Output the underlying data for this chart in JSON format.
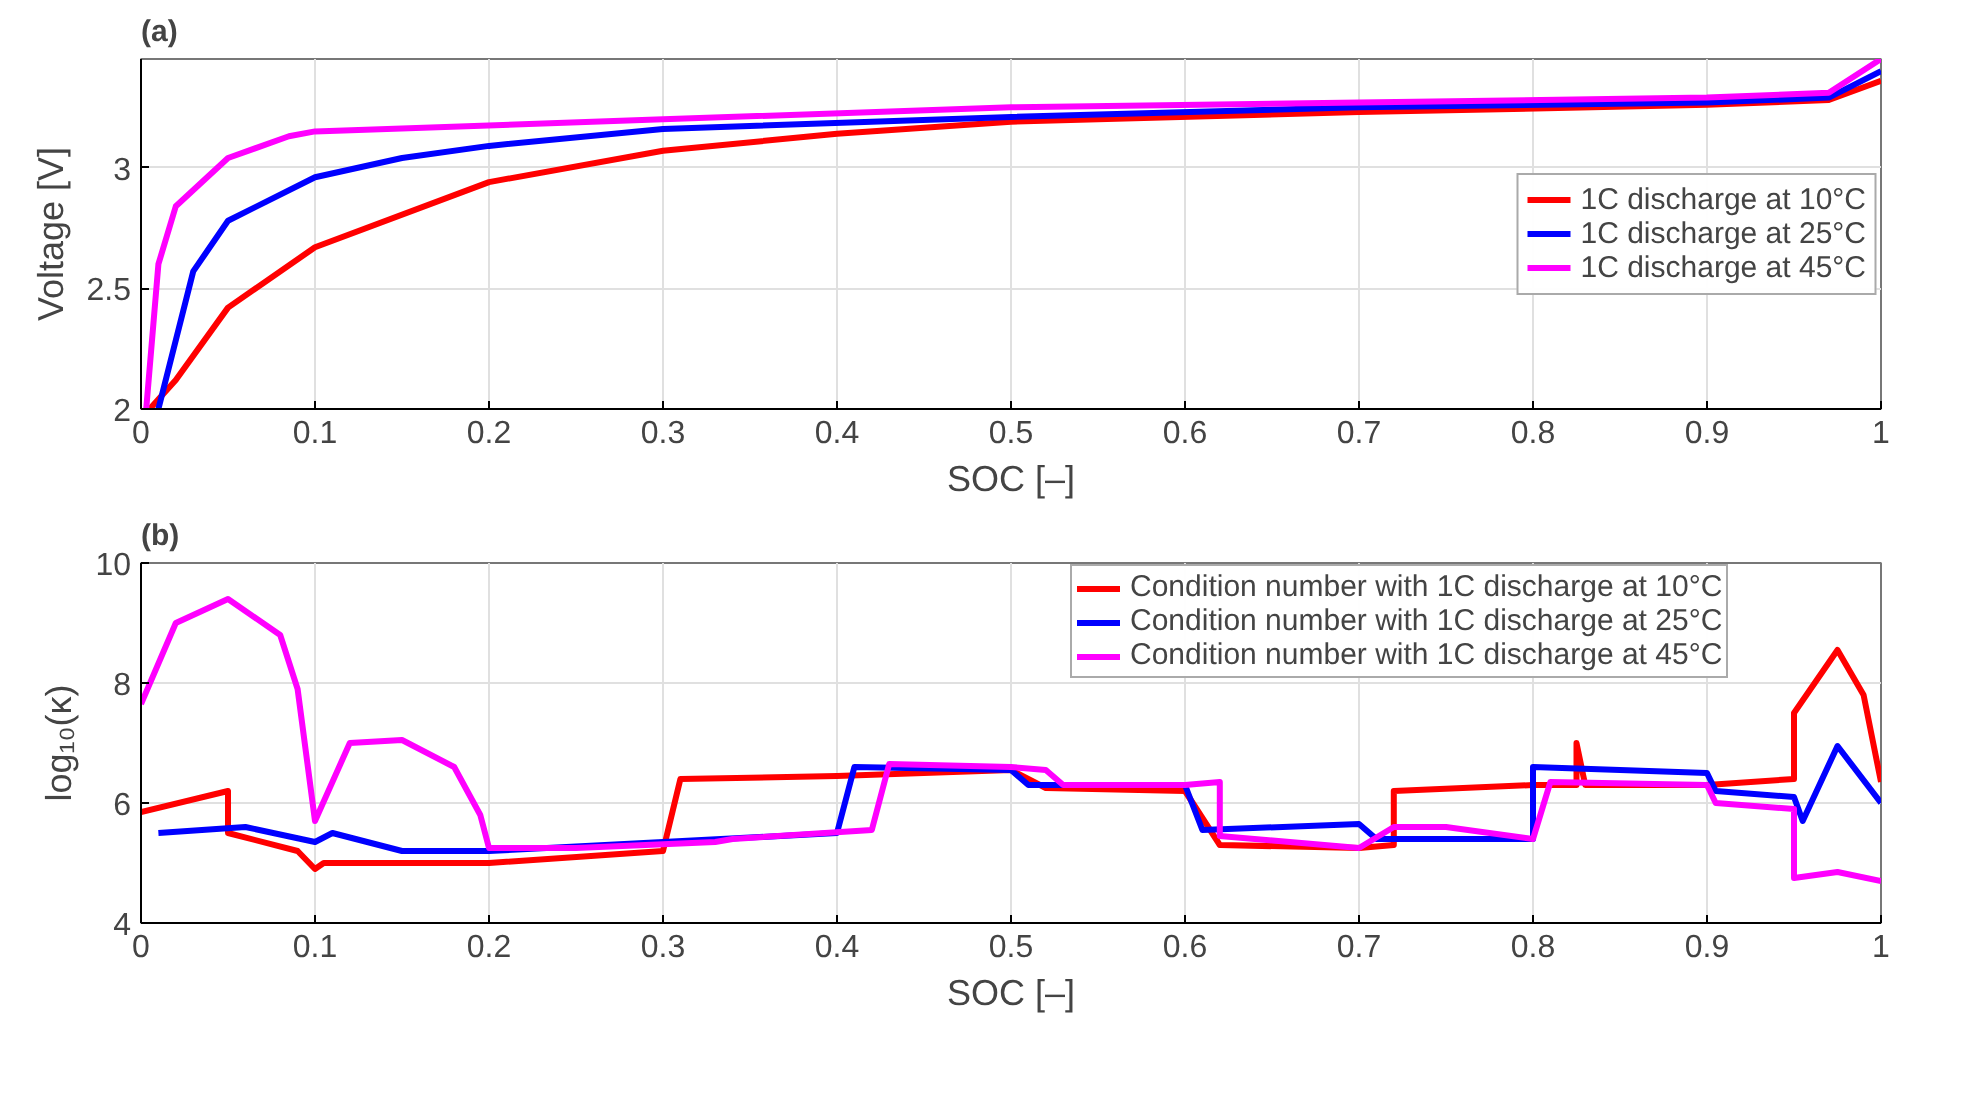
{
  "chart_data": [
    {
      "type": "line",
      "title": "(a)",
      "xlabel": "SOC [–]",
      "ylabel": "Voltage [V]",
      "xlim": [
        0,
        1
      ],
      "ylim": [
        2,
        3.45
      ],
      "xticks": [
        0,
        0.1,
        0.2,
        0.3,
        0.4,
        0.5,
        0.6,
        0.7,
        0.8,
        0.9,
        1
      ],
      "yticks": [
        2,
        2.5,
        3
      ],
      "grid": true,
      "legend": "right",
      "line_style": "solid",
      "series": [
        {
          "name": "1C discharge at 10°C",
          "color": "#ff0000",
          "x": [
            0.005,
            0.02,
            0.05,
            0.1,
            0.2,
            0.3,
            0.4,
            0.5,
            0.7,
            0.9,
            0.97,
            1.0
          ],
          "values": [
            2.0,
            2.12,
            2.42,
            2.67,
            2.94,
            3.07,
            3.14,
            3.19,
            3.23,
            3.26,
            3.28,
            3.36
          ]
        },
        {
          "name": "1C discharge at 25°C",
          "color": "#0000ff",
          "x": [
            0.01,
            0.03,
            0.05,
            0.1,
            0.15,
            0.2,
            0.3,
            0.5,
            0.7,
            0.9,
            0.97,
            1.0
          ],
          "values": [
            2.0,
            2.57,
            2.78,
            2.96,
            3.04,
            3.09,
            3.16,
            3.21,
            3.25,
            3.27,
            3.29,
            3.4
          ]
        },
        {
          "name": "1C discharge at 45°C",
          "color": "#ff00ff",
          "x": [
            0.003,
            0.01,
            0.02,
            0.05,
            0.085,
            0.1,
            0.3,
            0.5,
            0.7,
            0.9,
            0.97,
            1.0
          ],
          "values": [
            2.0,
            2.6,
            2.84,
            3.04,
            3.13,
            3.15,
            3.2,
            3.25,
            3.27,
            3.29,
            3.31,
            3.45
          ]
        }
      ]
    },
    {
      "type": "line",
      "title": "(b)",
      "xlabel": "SOC [–]",
      "ylabel": "log₁₀(κ)",
      "xlim": [
        0,
        1
      ],
      "ylim": [
        4,
        10
      ],
      "xticks": [
        0,
        0.1,
        0.2,
        0.3,
        0.4,
        0.5,
        0.6,
        0.7,
        0.8,
        0.9,
        1
      ],
      "yticks": [
        4,
        6,
        8,
        10
      ],
      "grid": true,
      "legend": "top",
      "line_style": "solid",
      "series": [
        {
          "name": "Condition number with 1C discharge at 10°C",
          "color": "#ff0000",
          "x": [
            0.0,
            0.05,
            0.05,
            0.09,
            0.1,
            0.105,
            0.2,
            0.3,
            0.31,
            0.4,
            0.5,
            0.52,
            0.6,
            0.62,
            0.7,
            0.72,
            0.72,
            0.8,
            0.825,
            0.825,
            0.83,
            0.9,
            0.95,
            0.95,
            0.975,
            0.99,
            1.0
          ],
          "values": [
            5.85,
            6.2,
            5.5,
            5.2,
            4.9,
            5.0,
            5.0,
            5.2,
            6.4,
            6.45,
            6.55,
            6.25,
            6.2,
            5.3,
            5.25,
            5.3,
            6.2,
            6.3,
            6.3,
            7.0,
            6.3,
            6.3,
            6.4,
            7.5,
            8.55,
            7.8,
            6.35
          ]
        },
        {
          "name": "Condition number with 1C discharge at 25°C",
          "color": "#0000ff",
          "x": [
            0.01,
            0.06,
            0.1,
            0.11,
            0.15,
            0.2,
            0.3,
            0.4,
            0.41,
            0.5,
            0.51,
            0.6,
            0.61,
            0.7,
            0.71,
            0.8,
            0.8,
            0.9,
            0.905,
            0.95,
            0.955,
            0.975,
            1.0
          ],
          "values": [
            5.5,
            5.6,
            5.35,
            5.5,
            5.2,
            5.2,
            5.35,
            5.5,
            6.6,
            6.55,
            6.3,
            6.3,
            5.55,
            5.65,
            5.4,
            5.4,
            6.6,
            6.5,
            6.2,
            6.1,
            5.7,
            6.95,
            6.0
          ]
        },
        {
          "name": "Condition number with 1C discharge at 45°C",
          "color": "#ff00ff",
          "x": [
            0.0,
            0.02,
            0.05,
            0.08,
            0.09,
            0.1,
            0.12,
            0.15,
            0.18,
            0.195,
            0.2,
            0.25,
            0.33,
            0.34,
            0.42,
            0.43,
            0.5,
            0.52,
            0.53,
            0.6,
            0.62,
            0.62,
            0.7,
            0.72,
            0.75,
            0.8,
            0.81,
            0.9,
            0.905,
            0.95,
            0.95,
            0.975,
            1.0
          ],
          "values": [
            7.65,
            9.0,
            9.4,
            8.8,
            7.9,
            5.7,
            7.0,
            7.05,
            6.6,
            5.8,
            5.25,
            5.25,
            5.35,
            5.4,
            5.55,
            6.65,
            6.6,
            6.55,
            6.3,
            6.3,
            6.35,
            5.45,
            5.25,
            5.6,
            5.6,
            5.4,
            6.35,
            6.3,
            6.0,
            5.9,
            4.75,
            4.85,
            4.7
          ]
        }
      ]
    }
  ]
}
